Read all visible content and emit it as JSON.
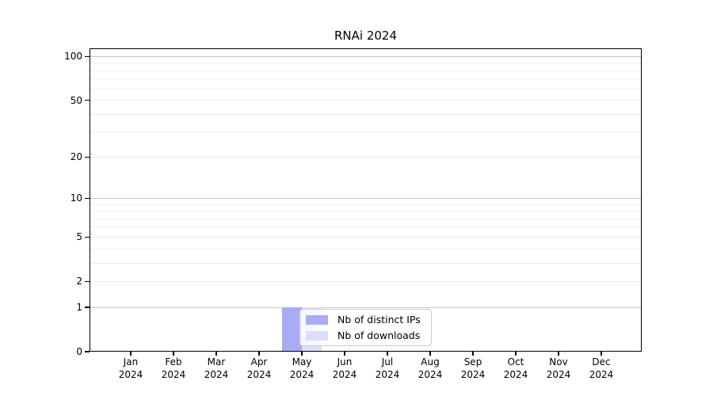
{
  "chart_data": {
    "type": "bar",
    "title": "RNAi 2024",
    "categories": [
      "Jan 2024",
      "Feb 2024",
      "Mar 2024",
      "Apr 2024",
      "May 2024",
      "Jun 2024",
      "Jul 2024",
      "Aug 2024",
      "Sep 2024",
      "Oct 2024",
      "Nov 2024",
      "Dec 2024"
    ],
    "series": [
      {
        "name": "Nb of distinct IPs",
        "color": "#a9abf4",
        "values": [
          0,
          0,
          0,
          0,
          1,
          0,
          0,
          0,
          0,
          0,
          0,
          0
        ]
      },
      {
        "name": "Nb of downloads",
        "color": "#dcdefb",
        "values": [
          0,
          0,
          0,
          0,
          1,
          0,
          0,
          0,
          0,
          0,
          0,
          0
        ]
      }
    ],
    "xlabel": "",
    "ylabel": "",
    "yaxis": {
      "scale": "log1p",
      "ylim": [
        0,
        114
      ],
      "tick_values": [
        0,
        1,
        2,
        5,
        10,
        20,
        50,
        100
      ],
      "major_gridlines": [
        1,
        10,
        100
      ],
      "minor_gridlines": [
        2,
        3,
        4,
        5,
        6,
        7,
        8,
        9,
        20,
        30,
        40,
        50,
        60,
        70,
        80,
        90
      ]
    },
    "grid": true,
    "legend": {
      "position": "lower-center",
      "entries": [
        "Nb of distinct IPs",
        "Nb of downloads"
      ]
    }
  },
  "colors": {
    "major_grid": "#c6c6c6",
    "minor_grid": "#ededed",
    "axis": "#000000",
    "legend_border": "#cccccc",
    "background": "#ffffff"
  }
}
